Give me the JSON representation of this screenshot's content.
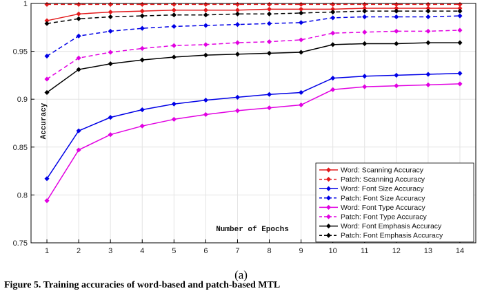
{
  "chart_data": {
    "type": "line",
    "title": "",
    "xlabel": "Number of Epochs",
    "ylabel": "Accuracy",
    "x": [
      1,
      2,
      3,
      4,
      5,
      6,
      7,
      8,
      9,
      10,
      11,
      12,
      13,
      14
    ],
    "xticks": [
      "1",
      "2",
      "3",
      "4",
      "5",
      "6",
      "7",
      "8",
      "9",
      "10",
      "11",
      "12",
      "13",
      "14"
    ],
    "ylim": [
      0.75,
      1.0
    ],
    "yticks": [
      "0.75",
      "0.8",
      "0.85",
      "0.9",
      "0.95",
      "1"
    ],
    "grid": true,
    "legend_position": "bottom-right",
    "series": [
      {
        "name": "Word: Scanning Accuracy",
        "color": "#e31a1c",
        "dash": "solid",
        "values": [
          0.982,
          0.989,
          0.991,
          0.992,
          0.993,
          0.993,
          0.993,
          0.994,
          0.994,
          0.994,
          0.995,
          0.995,
          0.995,
          0.995
        ]
      },
      {
        "name": "Patch: Scanning Accuracy",
        "color": "#e31a1c",
        "dash": "dashed",
        "values": [
          0.999,
          0.999,
          0.999,
          0.999,
          0.999,
          0.999,
          0.999,
          0.999,
          0.999,
          0.999,
          0.999,
          0.999,
          0.999,
          0.999
        ]
      },
      {
        "name": "Word: Font Size Accuracy",
        "color": "#0000e6",
        "dash": "solid",
        "values": [
          0.817,
          0.867,
          0.881,
          0.889,
          0.895,
          0.899,
          0.902,
          0.905,
          0.907,
          0.922,
          0.924,
          0.925,
          0.926,
          0.927
        ]
      },
      {
        "name": "Patch: Font Size Accuracy",
        "color": "#0000e6",
        "dash": "dashed",
        "values": [
          0.945,
          0.966,
          0.971,
          0.974,
          0.976,
          0.977,
          0.978,
          0.979,
          0.98,
          0.985,
          0.986,
          0.986,
          0.986,
          0.987
        ]
      },
      {
        "name": "Word: Font Type Accuracy",
        "color": "#e100e1",
        "dash": "solid",
        "values": [
          0.794,
          0.847,
          0.863,
          0.872,
          0.879,
          0.884,
          0.888,
          0.891,
          0.894,
          0.91,
          0.913,
          0.914,
          0.915,
          0.916
        ]
      },
      {
        "name": "Patch: Font Type Accuracy",
        "color": "#e100e1",
        "dash": "dashed",
        "values": [
          0.921,
          0.943,
          0.949,
          0.953,
          0.956,
          0.957,
          0.959,
          0.96,
          0.962,
          0.969,
          0.97,
          0.971,
          0.971,
          0.972
        ]
      },
      {
        "name": "Word: Font Emphasis Accuracy",
        "color": "#000000",
        "dash": "solid",
        "values": [
          0.907,
          0.931,
          0.937,
          0.941,
          0.944,
          0.946,
          0.947,
          0.948,
          0.949,
          0.957,
          0.958,
          0.958,
          0.959,
          0.959
        ]
      },
      {
        "name": "Patch: Font Emphasis Accuracy",
        "color": "#000000",
        "dash": "dashed",
        "values": [
          0.979,
          0.984,
          0.986,
          0.987,
          0.988,
          0.988,
          0.989,
          0.989,
          0.99,
          0.991,
          0.992,
          0.992,
          0.992,
          0.992
        ]
      }
    ]
  },
  "caption": {
    "subfigure": "(a)",
    "figure_text": "Figure 5. Training accuracies of word-based and patch-based MTL"
  }
}
